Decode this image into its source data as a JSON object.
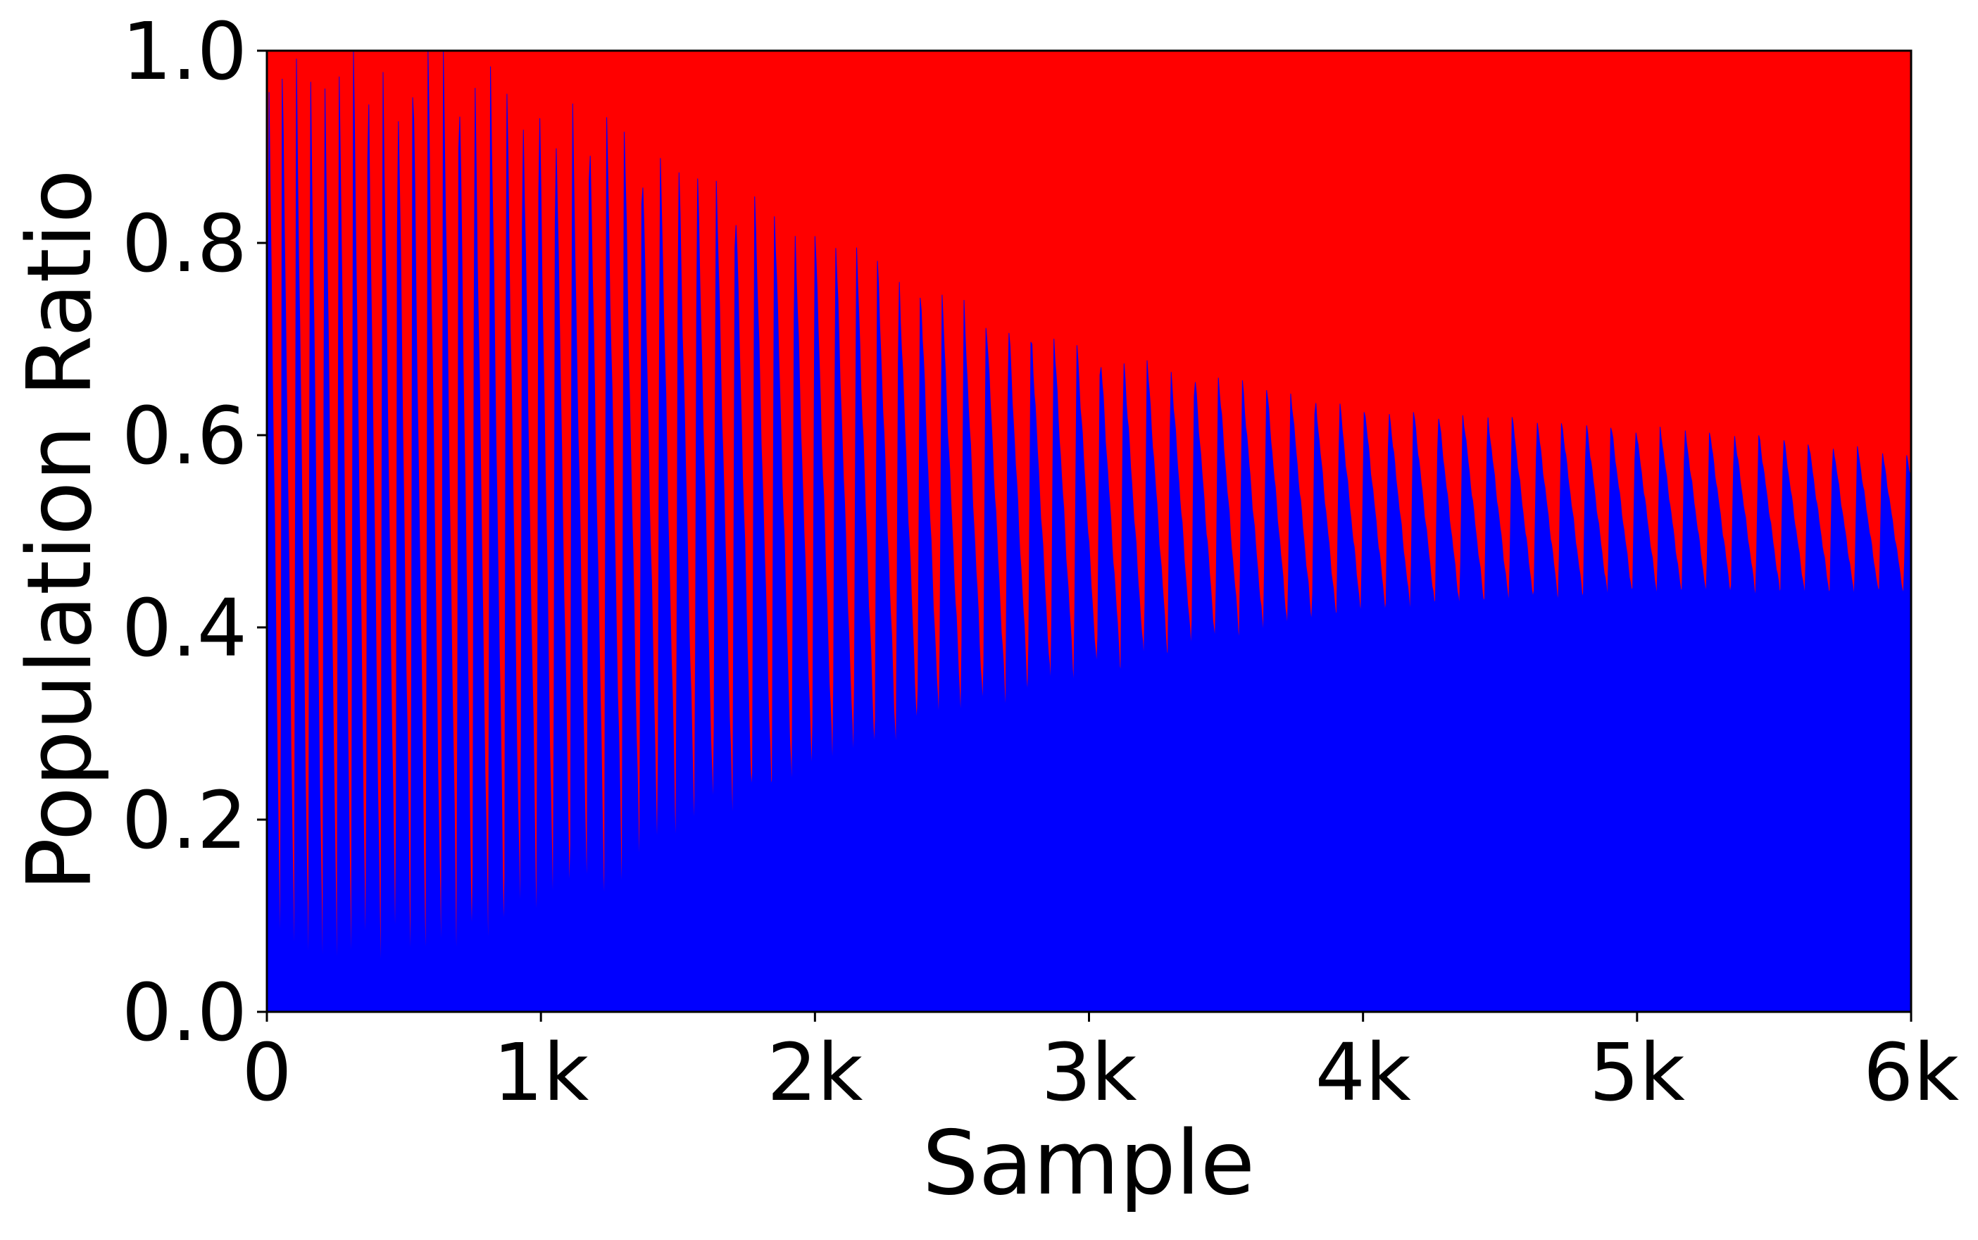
{
  "chart_data": {
    "type": "area",
    "title": "",
    "xlabel": "Sample",
    "ylabel": "Population Ratio",
    "xlim": [
      0,
      6000
    ],
    "ylim": [
      0,
      1
    ],
    "grid": false,
    "stacked": true,
    "x_ticks": [
      0,
      1000,
      2000,
      3000,
      4000,
      5000,
      6000
    ],
    "x_tick_labels": [
      "0",
      "1k",
      "2k",
      "3k",
      "4k",
      "5k",
      "6k"
    ],
    "y_ticks": [
      0.0,
      0.2,
      0.4,
      0.6,
      0.8,
      1.0
    ],
    "y_tick_labels": [
      "0.0",
      "0.2",
      "0.4",
      "0.6",
      "0.8",
      "1.0"
    ],
    "series": [
      {
        "color": "#0000ff",
        "fill": "lower"
      },
      {
        "color": "#ff0000",
        "fill": "upper"
      }
    ],
    "oscillation": {
      "description_points_x": [
        0,
        300,
        700,
        1000,
        1500,
        2000,
        2500,
        3000,
        3500,
        4000,
        4500,
        5000,
        5500,
        6000
      ],
      "peak": [
        1.0,
        1.0,
        1.0,
        0.97,
        0.9,
        0.82,
        0.74,
        0.69,
        0.66,
        0.63,
        0.62,
        0.61,
        0.6,
        0.58
      ],
      "trough": [
        0.0,
        0.0,
        0.0,
        0.05,
        0.15,
        0.22,
        0.29,
        0.34,
        0.38,
        0.41,
        0.42,
        0.43,
        0.43,
        0.43
      ],
      "period_at": [
        [
          0,
          50
        ],
        [
          1000,
          60
        ],
        [
          2000,
          75
        ],
        [
          3000,
          85
        ],
        [
          4000,
          90
        ],
        [
          6000,
          90
        ]
      ]
    }
  }
}
